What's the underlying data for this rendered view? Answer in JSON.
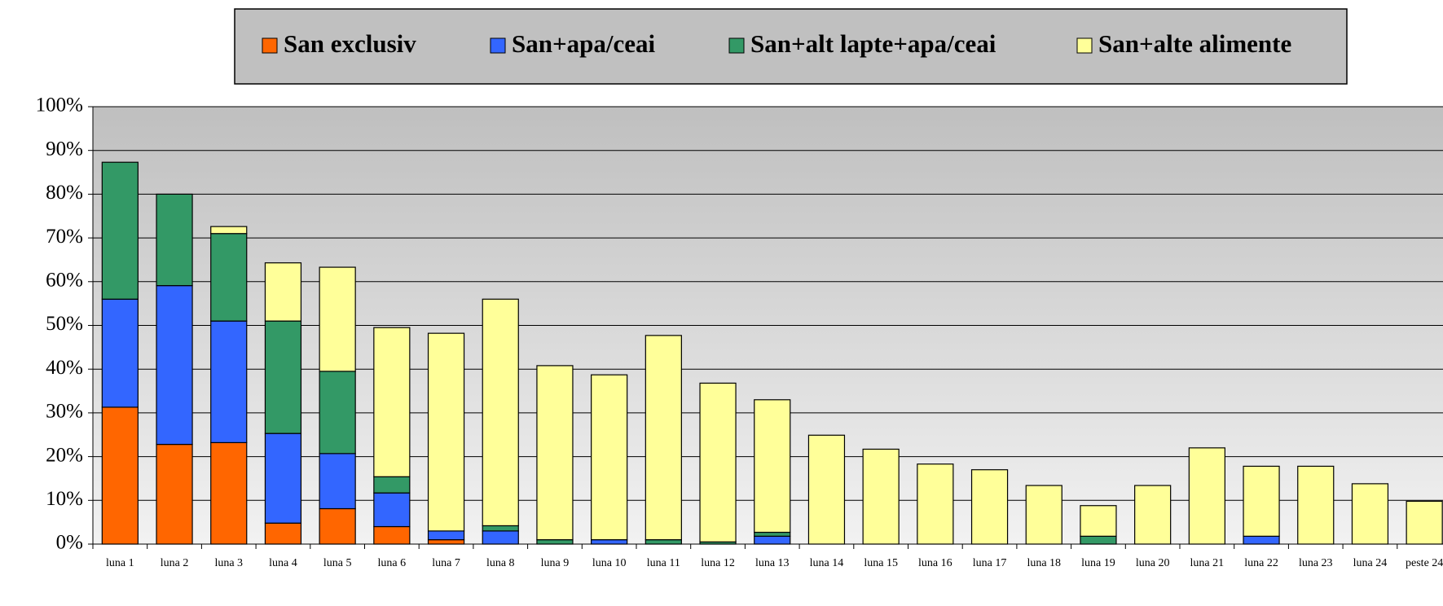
{
  "chart_data": {
    "type": "stacked_bar",
    "categories": [
      "luna 1",
      "luna 2",
      "luna 3",
      "luna 4",
      "luna 5",
      "luna 6",
      "luna 7",
      "luna 8",
      "luna 9",
      "luna 10",
      "luna 11",
      "luna 12",
      "luna 13",
      "luna 14",
      "luna 15",
      "luna 16",
      "luna 17",
      "luna 18",
      "luna 19",
      "luna 20",
      "luna 21",
      "luna 22",
      "luna 23",
      "luna 24",
      "peste 24"
    ],
    "series": [
      {
        "name": "San exclusiv",
        "color": "#ff6600",
        "values": [
          31.3,
          22.8,
          23.2,
          4.8,
          8.1,
          4,
          1,
          0,
          0,
          0,
          0,
          0,
          0,
          0,
          0,
          0,
          0,
          0,
          0,
          0,
          0,
          0,
          0,
          0,
          0
        ]
      },
      {
        "name": "San+apa/ceai",
        "color": "#3366ff",
        "values": [
          24.7,
          36.3,
          27.8,
          20.5,
          12.6,
          7.7,
          2,
          3,
          0,
          1,
          0,
          0,
          1.8,
          0,
          0,
          0,
          0,
          0,
          0,
          0,
          0,
          1.8,
          0,
          0,
          0
        ]
      },
      {
        "name": "San+alt lapte+apa/ceai",
        "color": "#339966",
        "values": [
          31.3,
          20.9,
          20,
          25.7,
          18.8,
          3.7,
          0,
          1.2,
          1,
          0,
          1,
          0.5,
          0.9,
          0,
          0,
          0,
          0,
          0,
          1.8,
          0,
          0,
          0,
          0,
          0,
          0
        ]
      },
      {
        "name": "San+alte alimente",
        "color": "#ffff99",
        "values": [
          0,
          0,
          1.6,
          13.3,
          23.8,
          34.1,
          45.2,
          51.8,
          39.8,
          37.7,
          46.7,
          36.3,
          30.3,
          24.9,
          21.7,
          18.3,
          17,
          13.4,
          7,
          13.4,
          22,
          16,
          17.8,
          13.8,
          9.8
        ]
      }
    ],
    "ylim": [
      0,
      100
    ],
    "yticks": [
      {
        "value": 0,
        "label": "0%"
      },
      {
        "value": 10,
        "label": "10%"
      },
      {
        "value": 20,
        "label": "20%"
      },
      {
        "value": 30,
        "label": "30%"
      },
      {
        "value": 40,
        "label": "40%"
      },
      {
        "value": 50,
        "label": "50%"
      },
      {
        "value": 60,
        "label": "60%"
      },
      {
        "value": 70,
        "label": "70%"
      },
      {
        "value": 80,
        "label": "80%"
      },
      {
        "value": 90,
        "label": "90%"
      },
      {
        "value": 100,
        "label": "100%"
      }
    ],
    "grid": true
  }
}
